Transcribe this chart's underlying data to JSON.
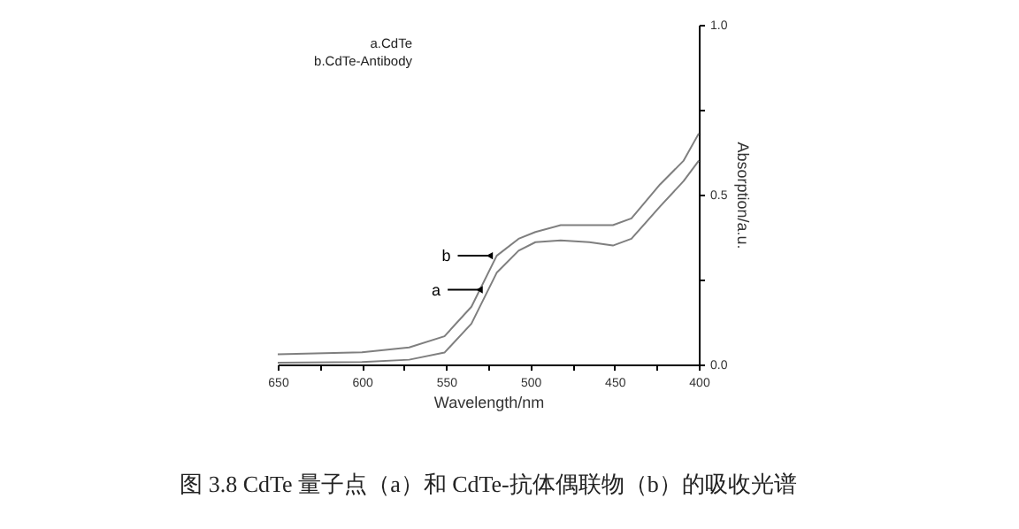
{
  "chart_data": {
    "type": "line",
    "xlabel": "Wavelength/nm",
    "ylabel": "Absorption/a.u.",
    "x": [
      650,
      600,
      572,
      551,
      535,
      520,
      507,
      497,
      482,
      465,
      451,
      440,
      423,
      409,
      400
    ],
    "series": [
      {
        "color": "#7f7f7f",
        "values": [
          0.005,
          0.007,
          0.014,
          0.035,
          0.12,
          0.27,
          0.335,
          0.36,
          0.365,
          0.36,
          0.35,
          0.37,
          0.465,
          0.54,
          0.6
        ]
      },
      {
        "color": "#7f7f7f",
        "values": [
          0.03,
          0.036,
          0.05,
          0.083,
          0.17,
          0.32,
          0.37,
          0.39,
          0.41,
          0.41,
          0.41,
          0.43,
          0.53,
          0.6,
          0.68
        ]
      }
    ],
    "xlim": [
      650,
      400
    ],
    "xticks": [
      650,
      {
        "value": 625,
        "label": null
      },
      600,
      {
        "value": 575,
        "label": null
      },
      550,
      {
        "value": 525,
        "label": null
      },
      500,
      {
        "value": 475,
        "label": null
      },
      450,
      {
        "value": 425,
        "label": null
      },
      400
    ],
    "ylim": [
      0,
      1
    ],
    "yticks": [
      {
        "value": 0,
        "label": "0.0"
      },
      {
        "value": 0.25,
        "label": null
      },
      {
        "value": 0.5,
        "label": "0.5"
      },
      {
        "value": 0.75,
        "label": null
      },
      {
        "value": 1,
        "label": "1.0"
      }
    ],
    "grid": false,
    "annotations": [
      {
        "text": "b",
        "x": 520,
        "y": 0.32
      },
      {
        "text": "a",
        "x": 526,
        "y": 0.22
      },
      "a.CdTe",
      "b.CdTe-Antibody",
      "图 3.8  CdTe 量子点（a）和 CdTe-抗体偶联物（b）的吸收光谱"
    ]
  }
}
